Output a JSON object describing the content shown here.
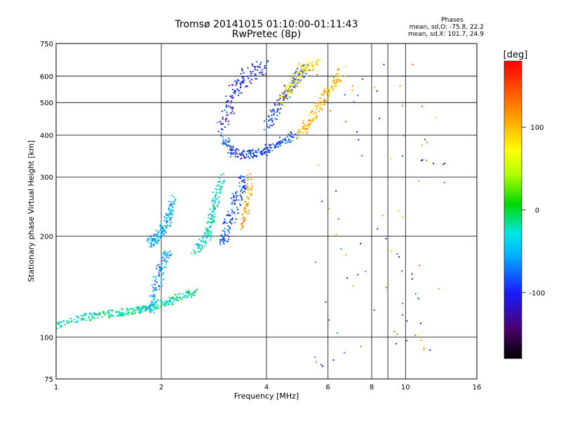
{
  "chart_data": {
    "type": "scatter",
    "title": "Tromsø 20141015 01:10:00-01:11:43",
    "subtitle": "RwPretec (8p)",
    "xlabel": "Frequency [MHz]",
    "ylabel": "Stationary phase Virtual Height [km]",
    "xscale": "log",
    "yscale": "log",
    "xlim": [
      1,
      16
    ],
    "ylim": [
      75,
      750
    ],
    "x_ticks": [
      1,
      2,
      4,
      6,
      8,
      10,
      16
    ],
    "x_tick_labels": [
      "1",
      "2",
      "4",
      "6",
      "8",
      "10",
      "16"
    ],
    "y_ticks": [
      75,
      100,
      200,
      300,
      400,
      500,
      600,
      750
    ],
    "y_tick_labels": [
      "75",
      "100",
      "200",
      "300",
      "400",
      "500",
      "600",
      "750"
    ],
    "grid": true,
    "phase_stats": {
      "heading": "Phases",
      "o_line": "mean, sd,O: -75.8, 22.2",
      "x_line": "mean, sd,X: 101.7, 24.9"
    },
    "colorbar": {
      "label": "[deg]",
      "range": [
        -180,
        180
      ],
      "ticks": [
        100,
        0,
        -100
      ],
      "tick_labels": [
        "100",
        "0",
        "-100"
      ],
      "placement": "right"
    },
    "series": [
      {
        "mode": "O",
        "color_phase_mean": -75.8,
        "traces": [
          {
            "f": [
              1.0,
              1.1,
              1.2,
              1.3,
              1.4,
              1.5,
              1.6,
              1.7,
              1.8,
              1.9,
              2.0,
              2.1,
              2.2,
              2.35,
              2.5
            ],
            "h": [
              108,
              112,
              114,
              116,
              117,
              118,
              119,
              120,
              121,
              123,
              125,
              127,
              131,
              133,
              136
            ],
            "phase": -20,
            "spread": 0.04
          },
          {
            "f": [
              1.85,
              1.9,
              1.95,
              2.0,
              2.05,
              2.1,
              2.13,
              2.15
            ],
            "h": [
              190,
              195,
              200,
              205,
              215,
              225,
              240,
              260
            ],
            "phase": -50,
            "spread": 0.05
          },
          {
            "f": [
              2.5,
              2.6,
              2.7,
              2.75,
              2.8,
              2.85,
              2.9,
              3.0
            ],
            "h": [
              180,
              190,
              200,
              215,
              230,
              250,
              270,
              300
            ],
            "phase": -30,
            "spread": 0.05
          },
          {
            "f": [
              3.0,
              3.05,
              3.1,
              3.2,
              3.3,
              3.4,
              3.45
            ],
            "h": [
              190,
              200,
              215,
              235,
              260,
              280,
              300
            ],
            "phase": -85,
            "spread": 0.06
          },
          {
            "f": [
              3.0,
              3.1,
              3.2,
              3.4,
              3.6,
              3.8,
              4.0,
              4.2,
              4.5,
              4.8
            ],
            "h": [
              400,
              370,
              355,
              350,
              350,
              355,
              360,
              370,
              385,
              400
            ],
            "phase": -90,
            "spread": 0.05
          },
          {
            "f": [
              3.0,
              3.1,
              3.2,
              3.35,
              3.5,
              3.7,
              4.0
            ],
            "h": [
              420,
              470,
              520,
              570,
              600,
              620,
              640
            ],
            "phase": -100,
            "spread": 0.08
          },
          {
            "f": [
              4.0,
              4.2,
              4.4,
              4.6,
              4.8,
              5.0,
              5.2
            ],
            "h": [
              420,
              460,
              500,
              540,
              580,
              610,
              640
            ],
            "phase": -90,
            "spread": 0.06
          },
          {
            "f": [
              1.85,
              1.9,
              1.95,
              2.0,
              2.05,
              2.1
            ],
            "h": [
              118,
              130,
              145,
              160,
              170,
              180
            ],
            "phase": -60,
            "spread": 0.06
          }
        ]
      },
      {
        "mode": "X",
        "color_phase_mean": 101.7,
        "traces": [
          {
            "f": [
              3.4,
              3.5,
              3.55,
              3.6
            ],
            "h": [
              210,
              240,
              270,
              300
            ],
            "phase": 110,
            "spread": 0.04
          },
          {
            "f": [
              5.0,
              5.2,
              5.4,
              5.6,
              5.8,
              6.0,
              6.3,
              6.6
            ],
            "h": [
              400,
              420,
              450,
              480,
              510,
              540,
              570,
              620
            ],
            "phase": 100,
            "spread": 0.06
          },
          {
            "f": [
              4.4,
              4.6,
              4.8,
              5.0,
              5.3,
              5.6
            ],
            "h": [
              500,
              540,
              580,
              620,
              640,
              650
            ],
            "phase": 80,
            "spread": 0.07
          }
        ]
      }
    ]
  }
}
